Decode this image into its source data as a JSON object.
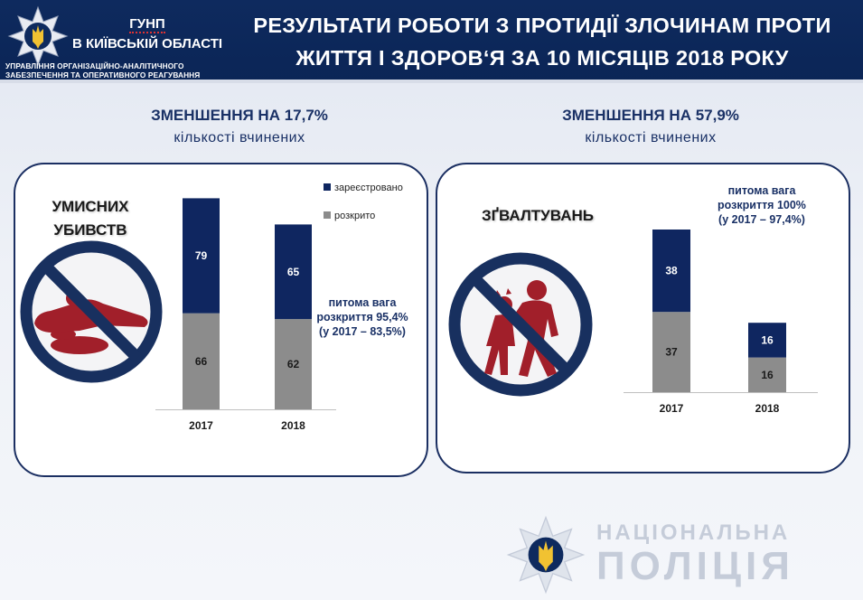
{
  "header": {
    "org_name_line1": "ГУНП",
    "org_name_line2": "В КИЇВСЬКІЙ ОБЛАСТІ",
    "org_sub_line1": "УПРАВЛІННЯ ОРГАНІЗАЦІЙНО-АНАЛІТИЧНОГО",
    "org_sub_line2": "ЗАБЕЗПЕЧЕННЯ ТА ОПЕРАТИВНОГО РЕАГУВАННЯ",
    "title_line1": "РЕЗУЛЬТАТИ РОБОТИ З ПРОТИДІЇ ЗЛОЧИНАМ ПРОТИ",
    "title_line2": "ЖИТТЯ І ЗДОРОВ‘Я ЗА 10 МІСЯЦІВ 2018 РОКУ"
  },
  "left": {
    "decrease_title": "ЗМЕНШЕННЯ НА 17,7%",
    "decrease_sub": "кількості вчинених",
    "crime_line1": "УМИСНИХ",
    "crime_line2": "УБИВСТВ",
    "legend_registered": "зареєстровано",
    "legend_solved": "розкрито",
    "note_line1": "питома вага",
    "note_line2": "розкриття 95,4%",
    "note_line3": "(у 2017 – 83,5%)"
  },
  "right": {
    "decrease_title": "ЗМЕНШЕННЯ НА 57,9%",
    "decrease_sub": "кількості вчинених",
    "crime_line1": "ЗҐВАЛТУВАНЬ",
    "note_line1": "питома вага",
    "note_line2": "розкриття 100%",
    "note_line3": "(у 2017 – 97,4%)"
  },
  "brand": {
    "line1": "НАЦІОНАЛЬНА",
    "line2": "ПОЛІЦІЯ"
  },
  "colors": {
    "header": "#0e2a5e",
    "registered": "#0f2660",
    "solved": "#8c8c8c",
    "prohibition": "#18305f",
    "figure": "#a11f2a"
  },
  "icons": {
    "logo": "police-star-trident-icon",
    "left_crime": "no-murder-icon",
    "right_crime": "no-assault-icon",
    "brand_logo": "police-star-trident-watermark-icon"
  },
  "chart_data": [
    {
      "type": "bar",
      "stacked": true,
      "categories": [
        "2017",
        "2018"
      ],
      "series": [
        {
          "name": "розкрито",
          "values": [
            66,
            62
          ]
        },
        {
          "name": "зареєстровано",
          "values": [
            79,
            65
          ]
        }
      ],
      "legend_position": "top-right",
      "grid": false
    },
    {
      "type": "bar",
      "stacked": true,
      "categories": [
        "2017",
        "2018"
      ],
      "series": [
        {
          "name": "розкрито",
          "values": [
            37,
            16
          ]
        },
        {
          "name": "зареєстровано",
          "values": [
            38,
            16
          ]
        }
      ],
      "grid": false
    }
  ]
}
